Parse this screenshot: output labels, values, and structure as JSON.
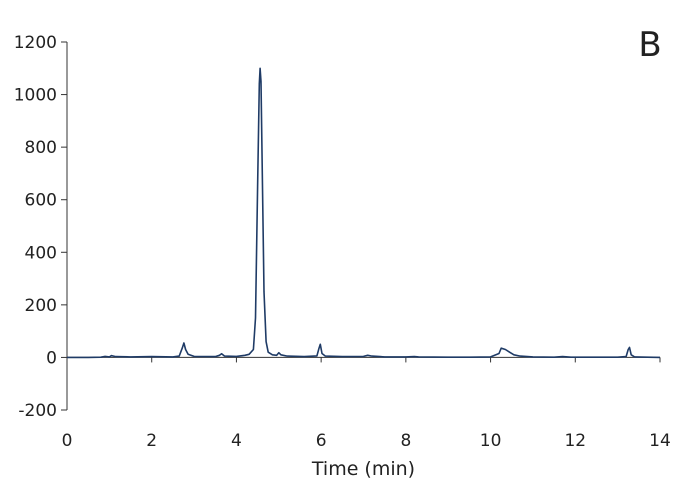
{
  "chart_data": {
    "type": "line",
    "title": "",
    "panel_label": "B",
    "xlabel": "Time (min)",
    "ylabel": "",
    "xlim": [
      0,
      14
    ],
    "ylim": [
      -200,
      1200
    ],
    "x_ticks": [
      0,
      2,
      4,
      6,
      8,
      10,
      12,
      14
    ],
    "y_ticks": [
      -200,
      0,
      200,
      400,
      600,
      800,
      1000,
      1200
    ],
    "grid": false,
    "legend": "none",
    "series": [
      {
        "color": "#1f3b66",
        "points": [
          [
            0,
            0
          ],
          [
            0.5,
            0
          ],
          [
            0.8,
            1
          ],
          [
            0.9,
            4
          ],
          [
            1.0,
            2
          ],
          [
            1.05,
            7
          ],
          [
            1.15,
            3
          ],
          [
            1.5,
            2
          ],
          [
            2.0,
            3
          ],
          [
            2.5,
            2
          ],
          [
            2.65,
            5
          ],
          [
            2.72,
            35
          ],
          [
            2.76,
            55
          ],
          [
            2.8,
            30
          ],
          [
            2.86,
            12
          ],
          [
            3.0,
            4
          ],
          [
            3.5,
            3
          ],
          [
            3.6,
            8
          ],
          [
            3.65,
            14
          ],
          [
            3.72,
            5
          ],
          [
            4.0,
            4
          ],
          [
            4.2,
            8
          ],
          [
            4.3,
            12
          ],
          [
            4.4,
            30
          ],
          [
            4.45,
            150
          ],
          [
            4.5,
            650
          ],
          [
            4.54,
            1040
          ],
          [
            4.56,
            1100
          ],
          [
            4.58,
            1050
          ],
          [
            4.61,
            700
          ],
          [
            4.65,
            250
          ],
          [
            4.7,
            60
          ],
          [
            4.75,
            20
          ],
          [
            4.85,
            10
          ],
          [
            4.95,
            8
          ],
          [
            5.0,
            18
          ],
          [
            5.05,
            10
          ],
          [
            5.2,
            5
          ],
          [
            5.6,
            3
          ],
          [
            5.9,
            6
          ],
          [
            5.95,
            35
          ],
          [
            5.98,
            50
          ],
          [
            6.02,
            15
          ],
          [
            6.1,
            5
          ],
          [
            6.5,
            3
          ],
          [
            7.0,
            4
          ],
          [
            7.1,
            8
          ],
          [
            7.2,
            5
          ],
          [
            7.5,
            2
          ],
          [
            8.0,
            2
          ],
          [
            8.2,
            3
          ],
          [
            8.3,
            2
          ],
          [
            9.0,
            1
          ],
          [
            9.5,
            1
          ],
          [
            10.0,
            2
          ],
          [
            10.2,
            15
          ],
          [
            10.25,
            35
          ],
          [
            10.35,
            30
          ],
          [
            10.45,
            20
          ],
          [
            10.55,
            10
          ],
          [
            10.7,
            5
          ],
          [
            11.0,
            2
          ],
          [
            11.5,
            1
          ],
          [
            11.7,
            3
          ],
          [
            11.9,
            1
          ],
          [
            12.5,
            1
          ],
          [
            13.0,
            1
          ],
          [
            13.2,
            3
          ],
          [
            13.25,
            30
          ],
          [
            13.28,
            38
          ],
          [
            13.32,
            10
          ],
          [
            13.4,
            2
          ],
          [
            14.0,
            0
          ]
        ]
      }
    ]
  }
}
